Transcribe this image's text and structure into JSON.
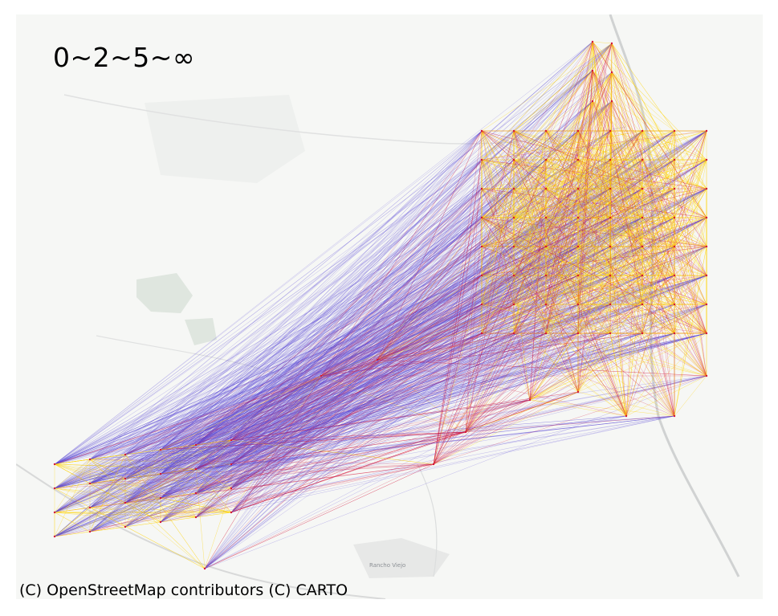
{
  "map": {
    "legend_title": "0~2~5~∞",
    "attribution": "(C) OpenStreetMap contributors (C) CARTO",
    "place_label": "Rancho Viejo",
    "colors": {
      "background": "#f6f7f5",
      "park_green": "#dfe6df",
      "road": "#d8d9d9",
      "edge_far": "#5b4bd6",
      "edge_mid": "#d4143a",
      "edge_near": "#ffd400"
    }
  }
}
